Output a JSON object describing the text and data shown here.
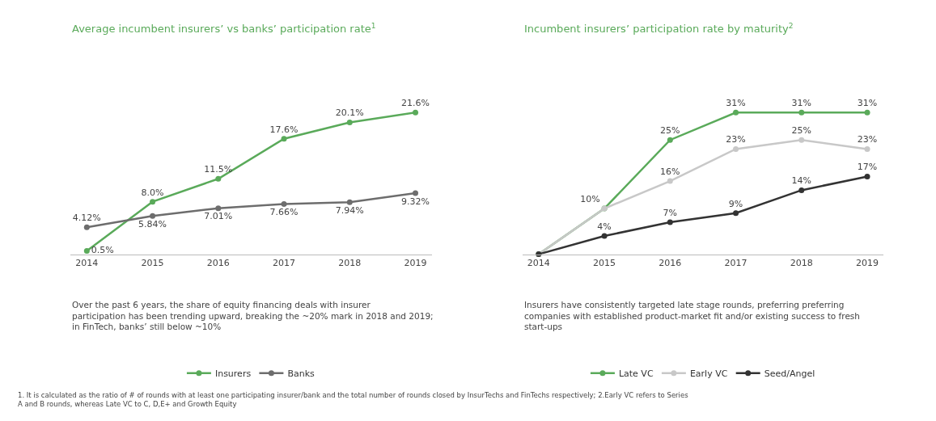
{
  "chart_data": [
    {
      "type": "line",
      "title": "Average incumbent insurers’ vs banks’ participation rate$^{1}$",
      "categories": [
        "2014",
        "2015",
        "2016",
        "2017",
        "2018",
        "2019"
      ],
      "marker": "circle",
      "legend": "bottom",
      "series": [
        {
          "name": "Insurers",
          "color": "#5aaa5a",
          "values": [
            0.5,
            8.0,
            11.5,
            17.6,
            20.1,
            21.6
          ],
          "value_labels": [
            "0.5%",
            "8.0%",
            "11.5%",
            "17.6%",
            "20.1%",
            "21.6%"
          ]
        },
        {
          "name": "Banks",
          "color": "#6d6d6d",
          "values": [
            4.12,
            5.84,
            7.01,
            7.66,
            7.94,
            9.32
          ],
          "value_labels": [
            "4.12%",
            "5.84%",
            "7.01%",
            "7.66%",
            "7.94%",
            "9.32%"
          ]
        }
      ],
      "annotations": [
        "Over the past 6 years, the share of equity financing deals with insurer participation has been trending upward, breaking the ~20% mark in 2018 and 2019; in FinTech, banks’ still below ~10%",
        "1. It is calculated as the ratio of # of rounds with at least one participating insurer/bank and the total number of rounds closed by InsurTechs and FinTechs respectively; 2.Early VC refers to Series A and B rounds, whereas Late VC to C, D,E+ and Growth Equity"
      ]
    },
    {
      "type": "line",
      "title": "Incumbent insurers’ participation rate by maturity$^{2}$",
      "categories": [
        "2014",
        "2015",
        "2016",
        "2017",
        "2018",
        "2019"
      ],
      "marker": "circle",
      "legend": "bottom",
      "series": [
        {
          "name": "Late VC",
          "color": "#5aaa5a",
          "values": [
            0,
            10,
            25,
            31,
            31,
            31
          ],
          "value_labels": [
            null,
            "10%",
            "25%",
            "31%",
            "31%",
            "31%"
          ]
        },
        {
          "name": "Early VC",
          "color": "#c8c8c8",
          "values": [
            0,
            10,
            16,
            23,
            25,
            23
          ],
          "value_labels": [
            null,
            null,
            "16%",
            "23%",
            "25%",
            "23%"
          ]
        },
        {
          "name": "Seed/Angel",
          "color": "#333333",
          "values": [
            0,
            4,
            7,
            9,
            14,
            17
          ],
          "value_labels": [
            null,
            "4%",
            "7%",
            "9%",
            "14%",
            "17%"
          ]
        }
      ],
      "annotations": [
        "Insurers have consistently targeted late stage rounds, preferring preferring companies with established product-market fit and/or existing success to fresh start-ups"
      ]
    }
  ]
}
